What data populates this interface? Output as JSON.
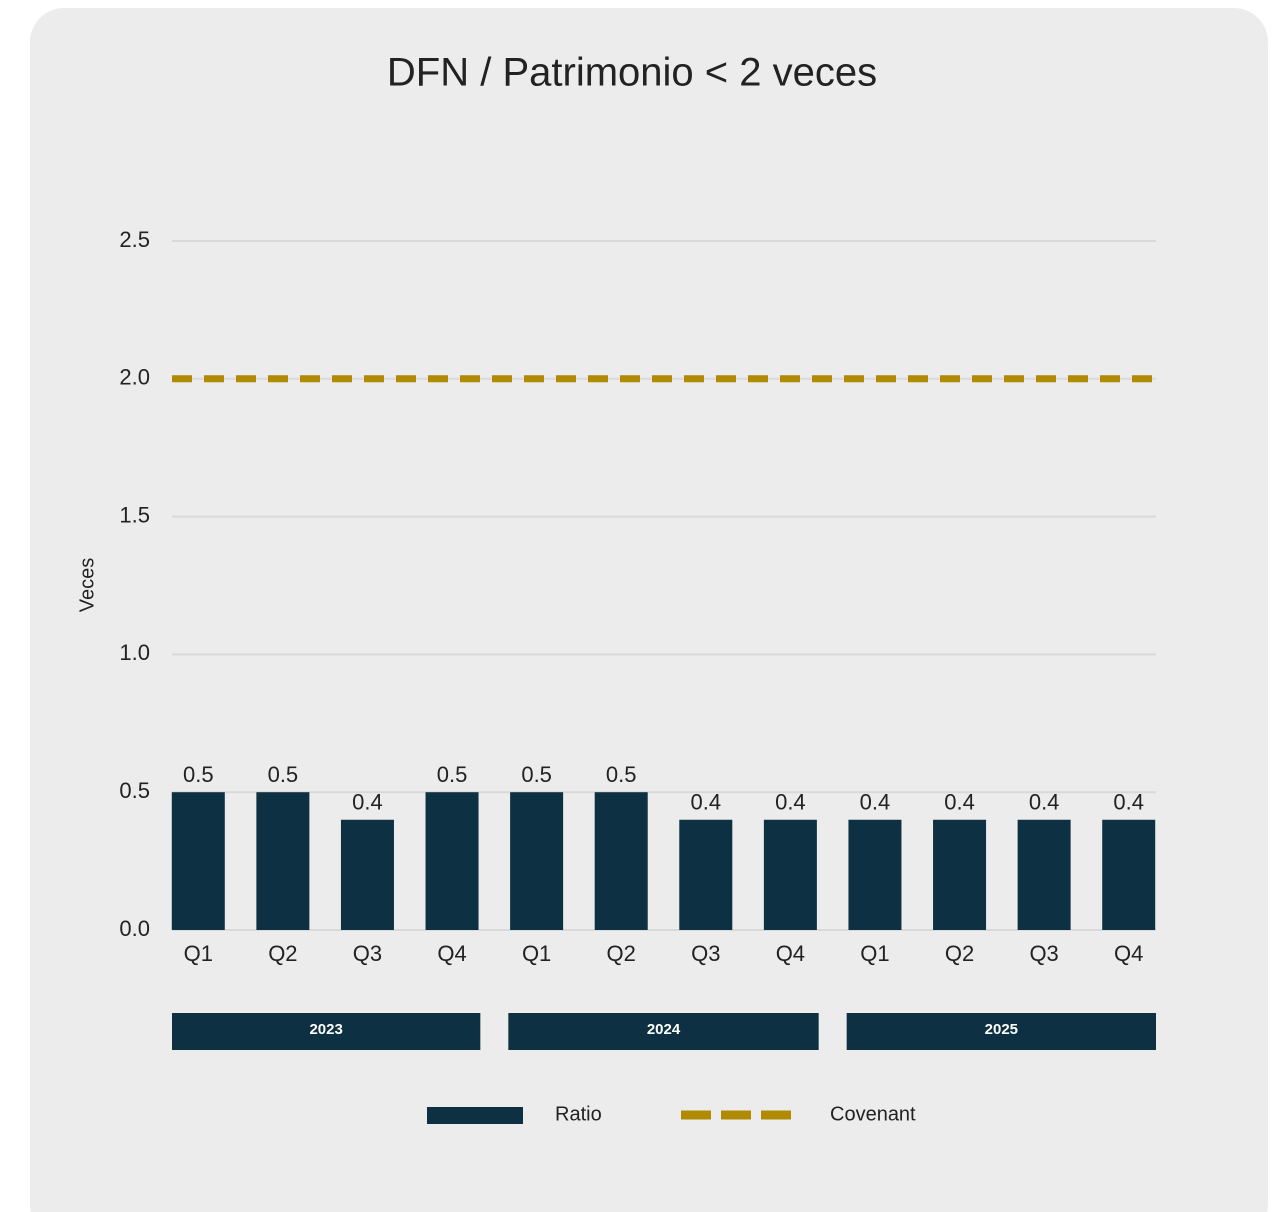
{
  "chart_data": {
    "type": "bar",
    "title": "DFN / Patrimonio < 2 veces",
    "y_label": "Veces",
    "categories": [
      "Q1",
      "Q2",
      "Q3",
      "Q4",
      "Q1",
      "Q2",
      "Q3",
      "Q4",
      "Q1",
      "Q2",
      "Q3",
      "Q4"
    ],
    "year_groups": [
      "2023",
      "2024",
      "2025"
    ],
    "series": [
      {
        "name": "Ratio",
        "type": "bar",
        "color": "#0d3042",
        "values": [
          0.5,
          0.5,
          0.4,
          0.5,
          0.5,
          0.5,
          0.4,
          0.4,
          0.4,
          0.4,
          0.4,
          0.4
        ]
      },
      {
        "name": "Covenant",
        "type": "line",
        "dashed": true,
        "color": "#b08a00",
        "values": [
          2,
          2,
          2,
          2,
          2,
          2,
          2,
          2,
          2,
          2,
          2,
          2
        ]
      }
    ],
    "ylim": [
      0,
      2.5
    ],
    "yticks": [
      {
        "value": 0,
        "label": "0.0"
      },
      0.5,
      {
        "value": 1,
        "label": "1.0"
      },
      1.5,
      {
        "value": 2,
        "label": "2.0"
      },
      2.5
    ],
    "grid": true,
    "legend": "bottom"
  }
}
